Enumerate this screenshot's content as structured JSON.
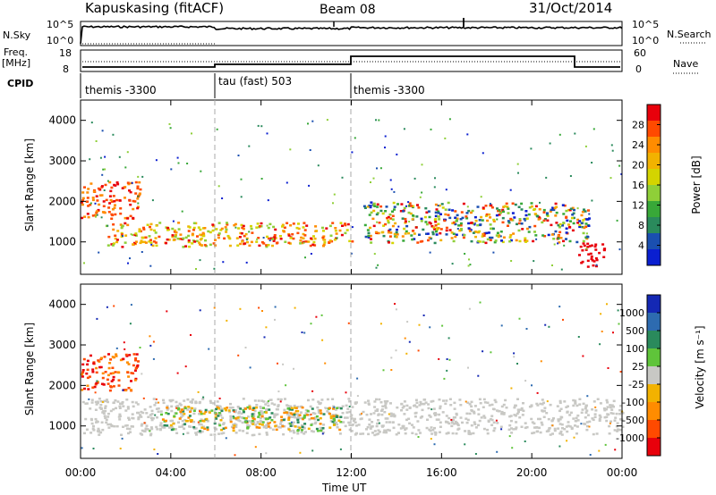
{
  "header": {
    "station": "Kapuskasing (fitACF)",
    "beam": "Beam 08",
    "date": "31/Oct/2014"
  },
  "top_panels": {
    "nsky_label": "N.Sky",
    "nsky_ticks": [
      "10^5",
      "10^0"
    ],
    "nsearch_label": "N.Search",
    "nsearch_ticks": [
      "10^5",
      "10^0"
    ],
    "freq_label": "Freq.",
    "freq_unit": "[MHz]",
    "freq_ticks": [
      "18",
      "8"
    ],
    "nave_label": "Nave",
    "nave_ticks": [
      "60",
      "0"
    ],
    "cpid_label": "CPID",
    "cpid_segments": [
      {
        "label": "themis -3300",
        "start_hour": 0,
        "end_hour": 6
      },
      {
        "label": "tau (fast) 503",
        "start_hour": 6,
        "end_hour": 12
      },
      {
        "label": "themis -3300",
        "start_hour": 12,
        "end_hour": 24
      }
    ]
  },
  "chart_data": [
    {
      "type": "heatmap",
      "title": "",
      "xlabel": "Time UT",
      "ylabel": "Slant Range [km]",
      "xlim": [
        0,
        24
      ],
      "ylim": [
        200,
        4500
      ],
      "x_ticks": [
        "00:00",
        "04:00",
        "08:00",
        "12:00",
        "16:00",
        "20:00",
        "00:00"
      ],
      "y_ticks": [
        "1000",
        "2000",
        "3000",
        "4000"
      ],
      "colorbar": {
        "label": "Power [dB]",
        "range": [
          0,
          32
        ],
        "ticks": [
          "28",
          "24",
          "20",
          "16",
          "12",
          "8",
          "4"
        ],
        "colors": [
          "#e8000b",
          "#ff4a00",
          "#ff8c00",
          "#f2b200",
          "#d4d400",
          "#8fcf38",
          "#38a838",
          "#2a8a5c",
          "#1a4fb0",
          "#0a1fd0"
        ]
      },
      "features": [
        {
          "start_hour": 0,
          "end_hour": 2.6,
          "range_km": [
            1600,
            2500
          ],
          "power_db": "24-28"
        },
        {
          "start_hour": 1.0,
          "end_hour": 12.0,
          "range_km": [
            900,
            1500
          ],
          "power_db": "20-28"
        },
        {
          "start_hour": 12.5,
          "end_hour": 22.5,
          "range_km": [
            1000,
            2000
          ],
          "power_db": "8-24"
        },
        {
          "start_hour": 22.0,
          "end_hour": 23.2,
          "range_km": [
            400,
            1000
          ],
          "power_db": "28"
        }
      ]
    },
    {
      "type": "heatmap",
      "title": "",
      "xlabel": "Time UT",
      "ylabel": "Slant Range [km]",
      "xlim": [
        0,
        24
      ],
      "ylim": [
        200,
        4500
      ],
      "x_ticks": [
        "00:00",
        "04:00",
        "08:00",
        "12:00",
        "16:00",
        "20:00",
        "00:00"
      ],
      "y_ticks": [
        "1000",
        "2000",
        "3000",
        "4000"
      ],
      "colorbar": {
        "label": "Velocity [m s⁻¹]",
        "ticks": [
          "1000",
          "500",
          "100",
          "25",
          "-25",
          "-100",
          "-500",
          "-1000"
        ],
        "colors": [
          "#1428b4",
          "#2d6bb0",
          "#2a8a5c",
          "#5fc43a",
          "#c8c8c4",
          "#f2b200",
          "#ff8c00",
          "#ff4a00",
          "#e8000b"
        ]
      },
      "features": [
        {
          "start_hour": 0,
          "end_hour": 2.5,
          "range_km": [
            1900,
            2800
          ],
          "velocity": "-500 to -1000"
        },
        {
          "start_hour": 0,
          "end_hour": 24,
          "range_km": [
            800,
            1700
          ],
          "velocity": "ground scatter (-25 to 25)"
        },
        {
          "start_hour": 3.5,
          "end_hour": 11.5,
          "range_km": [
            900,
            1500
          ],
          "velocity": "-100 to 100"
        }
      ]
    }
  ]
}
